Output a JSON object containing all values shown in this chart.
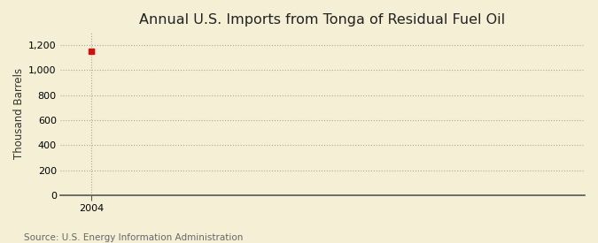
{
  "title": "Annual U.S. Imports from Tonga of Residual Fuel Oil",
  "ylabel": "Thousand Barrels",
  "source_text": "Source: U.S. Energy Information Administration",
  "x_data": [
    2004
  ],
  "y_data": [
    1148
  ],
  "xlim": [
    2003.4,
    2013.5
  ],
  "ylim": [
    0,
    1300
  ],
  "yticks": [
    0,
    200,
    400,
    600,
    800,
    1000,
    1200
  ],
  "ytick_labels": [
    "0",
    "200",
    "400",
    "600",
    "800",
    "1,000",
    "1,200"
  ],
  "xticks": [
    2004
  ],
  "background_color": "#f5efd5",
  "plot_bg_color": "#f5efd5",
  "grid_color": "#b0a898",
  "vline_color": "#b0a898",
  "data_color": "#cc1111",
  "title_fontsize": 11.5,
  "label_fontsize": 8.5,
  "tick_fontsize": 8,
  "source_fontsize": 7.5
}
